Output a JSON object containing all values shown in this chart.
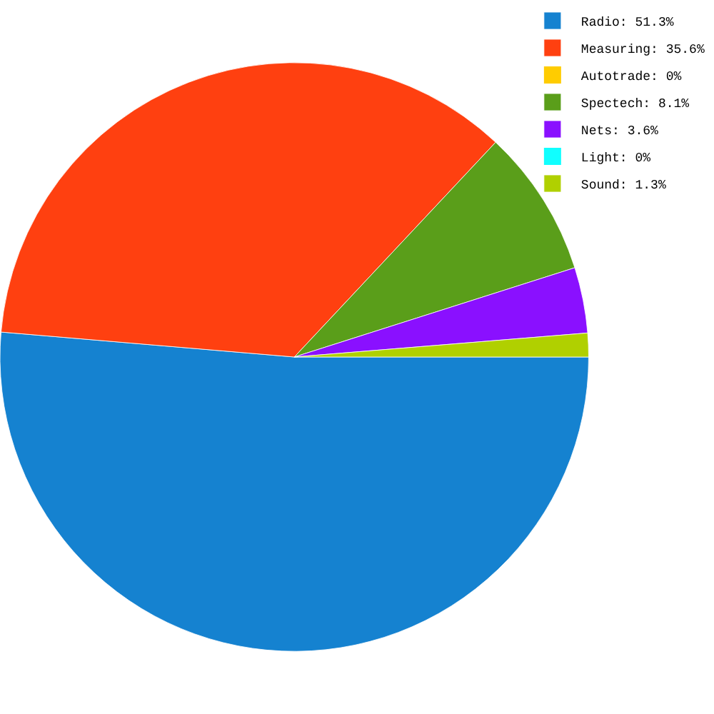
{
  "chart_data": {
    "type": "pie",
    "categories": [
      "Radio",
      "Measuring",
      "Autotrade",
      "Spectech",
      "Nets",
      "Light",
      "Sound"
    ],
    "values": [
      51.3,
      35.6,
      0,
      8.1,
      3.6,
      0,
      1.3
    ],
    "value_labels": [
      "51.3%",
      "35.6%",
      "0%",
      "8.1%",
      "3.6%",
      "0%",
      "1.3%"
    ],
    "colors": [
      "#1582d0",
      "#ff4010",
      "#ffcc00",
      "#5a9e1a",
      "#8a10ff",
      "#10ffff",
      "#b0d000"
    ],
    "legend": "top right"
  }
}
